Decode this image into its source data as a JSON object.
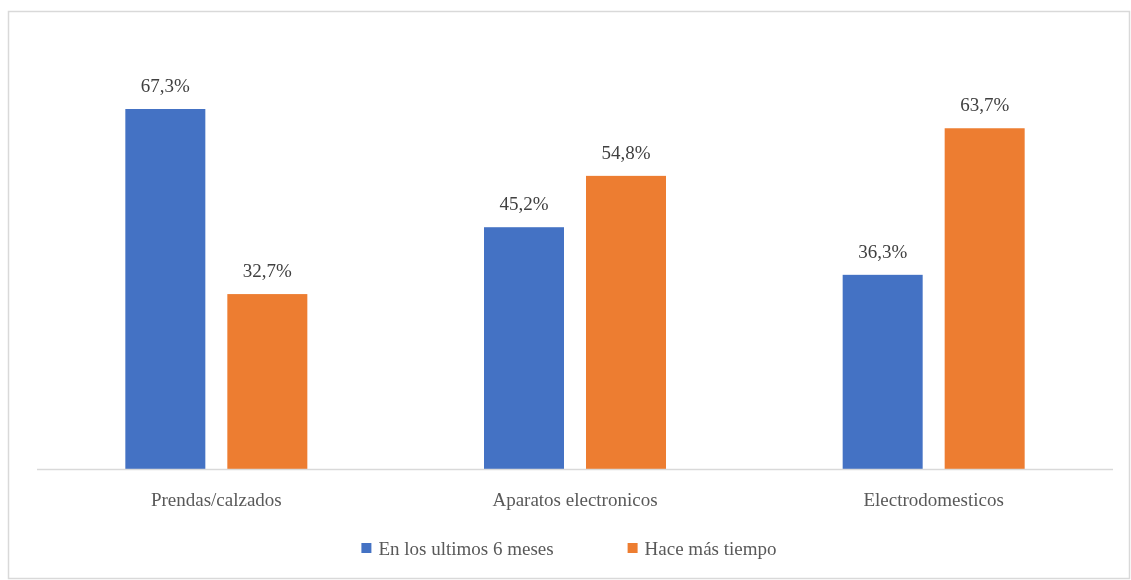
{
  "chart_data": {
    "type": "bar",
    "categories": [
      "Prendas/calzados",
      "Aparatos electronicos",
      "Electrodomesticos"
    ],
    "series": [
      {
        "name": "En los ultimos 6 meses",
        "color": "#4472c4",
        "values": [
          67.3,
          45.2,
          36.3
        ],
        "value_labels": [
          "67,3%",
          "45,2%",
          "36,3%"
        ]
      },
      {
        "name": "Hace más tiempo",
        "color": "#ed7d31",
        "values": [
          32.7,
          54.8,
          63.7
        ],
        "value_labels": [
          "32,7%",
          "54,8%",
          "63,7%"
        ]
      }
    ],
    "legend": "bottom"
  }
}
